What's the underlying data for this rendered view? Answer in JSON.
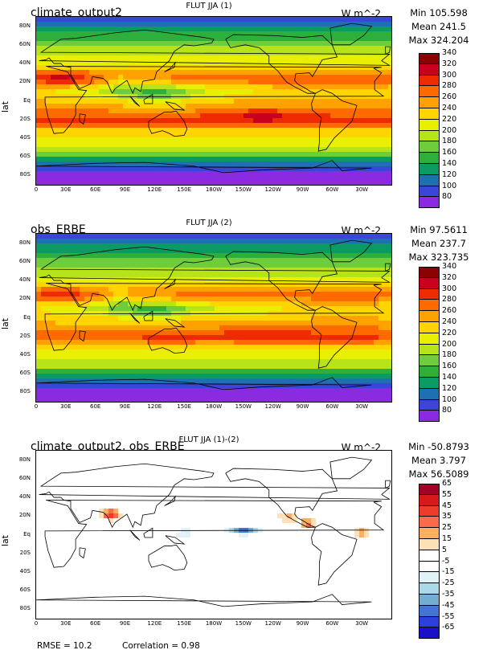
{
  "panels": [
    {
      "center_title": "FLUT JJA (1)",
      "left_title": "climate_output2",
      "units": "W m^-2",
      "stats": [
        "Min 105.598",
        "Mean 241.5",
        "Max 324.204"
      ],
      "ylabel": "lat",
      "colorbar": {
        "labels": [
          "340",
          "320",
          "300",
          "280",
          "260",
          "240",
          "220",
          "200",
          "180",
          "160",
          "140",
          "120",
          "100",
          "80"
        ],
        "colors": [
          "#8b0000",
          "#c8001e",
          "#ee2a00",
          "#ff6a00",
          "#ffa200",
          "#ffd400",
          "#e8ef00",
          "#b7e31a",
          "#6fcc3b",
          "#2eaf3c",
          "#0a9a64",
          "#1f70b0",
          "#3a46d8",
          "#8a2be2"
        ]
      }
    },
    {
      "center_title": "FLUT JJA (2)",
      "left_title": "obs_ERBE",
      "units": "W m^-2",
      "stats": [
        "Min 97.5611",
        "Mean 237.7",
        "Max 323.735"
      ],
      "ylabel": "lat",
      "colorbar": {
        "labels": [
          "340",
          "320",
          "300",
          "280",
          "260",
          "240",
          "220",
          "200",
          "180",
          "160",
          "140",
          "120",
          "100",
          "80"
        ],
        "colors": [
          "#8b0000",
          "#c8001e",
          "#ee2a00",
          "#ff6a00",
          "#ffa200",
          "#ffd400",
          "#e8ef00",
          "#b7e31a",
          "#6fcc3b",
          "#2eaf3c",
          "#0a9a64",
          "#1f70b0",
          "#3a46d8",
          "#8a2be2"
        ]
      }
    },
    {
      "center_title": "FLUT JJA (1)-(2)",
      "left_title": "climate_output2, obs_ERBE",
      "units": "W m^-2",
      "stats": [
        "Min -50.8793",
        "Mean 3.797",
        "Max 56.5089"
      ],
      "ylabel": "lat",
      "colorbar": {
        "labels": [
          "65",
          "55",
          "45",
          "35",
          "25",
          "15",
          "5",
          "-5",
          "-15",
          "-25",
          "-35",
          "-45",
          "-55",
          "-65"
        ],
        "colors": [
          "#a50026",
          "#d7191c",
          "#ef3b2c",
          "#fb6a4a",
          "#fdae61",
          "#fee0b6",
          "#ffffff",
          "#ffffff",
          "#e0f3f8",
          "#abd9e9",
          "#74add1",
          "#4575d4",
          "#2c40e0",
          "#1a10c8"
        ]
      }
    }
  ],
  "chart_data": [
    {
      "type": "heatmap",
      "title": "FLUT JJA (1)",
      "subtitle": "climate_output2",
      "units": "W m^-2",
      "ylabel": "lat",
      "xticks": [
        "0",
        "30E",
        "60E",
        "90E",
        "120E",
        "150E",
        "180W",
        "150W",
        "120W",
        "90W",
        "60W",
        "30W"
      ],
      "yticks": [
        "80N",
        "60N",
        "40N",
        "20N",
        "Eq",
        "20S",
        "40S",
        "60S",
        "80S"
      ],
      "levels": [
        80,
        100,
        120,
        140,
        160,
        180,
        200,
        220,
        240,
        260,
        280,
        300,
        320,
        340
      ],
      "stats": {
        "min": 105.598,
        "mean": 241.5,
        "max": 324.204
      }
    },
    {
      "type": "heatmap",
      "title": "FLUT JJA (2)",
      "subtitle": "obs_ERBE",
      "units": "W m^-2",
      "ylabel": "lat",
      "xticks": [
        "0",
        "30E",
        "60E",
        "90E",
        "120E",
        "150E",
        "180W",
        "150W",
        "120W",
        "90W",
        "60W",
        "30W"
      ],
      "yticks": [
        "80N",
        "60N",
        "40N",
        "20N",
        "Eq",
        "20S",
        "40S",
        "60S",
        "80S"
      ],
      "levels": [
        80,
        100,
        120,
        140,
        160,
        180,
        200,
        220,
        240,
        260,
        280,
        300,
        320,
        340
      ],
      "stats": {
        "min": 97.5611,
        "mean": 237.7,
        "max": 323.735
      }
    },
    {
      "type": "heatmap",
      "title": "FLUT JJA (1)-(2)",
      "subtitle": "climate_output2, obs_ERBE",
      "units": "W m^-2",
      "ylabel": "lat",
      "xticks": [
        "0",
        "30E",
        "60E",
        "90E",
        "120E",
        "150E",
        "180W",
        "150W",
        "120W",
        "90W",
        "60W",
        "30W"
      ],
      "yticks": [
        "80N",
        "60N",
        "40N",
        "20N",
        "Eq",
        "20S",
        "40S",
        "60S",
        "80S"
      ],
      "levels": [
        -65,
        -55,
        -45,
        -35,
        -25,
        -15,
        -5,
        5,
        15,
        25,
        35,
        45,
        55,
        65
      ],
      "stats": {
        "min": -50.8793,
        "mean": 3.797,
        "max": 56.5089
      },
      "rmse": 10.2,
      "correlation": 0.98
    }
  ],
  "footer": {
    "rmse": "RMSE = 10.2",
    "correlation": "Correlation = 0.98"
  }
}
